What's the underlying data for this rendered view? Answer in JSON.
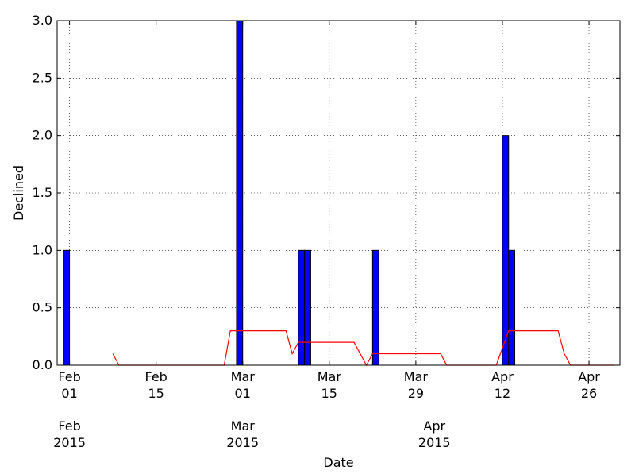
{
  "chart_data": {
    "type": "bar",
    "xlabel": "Date",
    "ylabel": "Declined",
    "grid": true,
    "xlim": [
      "2015-01-30",
      "2015-05-01"
    ],
    "ylim": [
      0,
      3.0
    ],
    "yticks": [
      {
        "value": 0.0,
        "label": "0.0"
      },
      {
        "value": 0.5,
        "label": "0.5"
      },
      {
        "value": 1.0,
        "label": "1.0"
      },
      {
        "value": 1.5,
        "label": "1.5"
      },
      {
        "value": 2.0,
        "label": "2.0"
      },
      {
        "value": 2.5,
        "label": "2.5"
      },
      {
        "value": 3.0,
        "label": "3.0"
      }
    ],
    "xticks": [
      {
        "date": "2015-02-01",
        "label": "Feb",
        "sublabel": "01"
      },
      {
        "date": "2015-02-15",
        "label": "Feb",
        "sublabel": "15"
      },
      {
        "date": "2015-03-01",
        "label": "Mar",
        "sublabel": "01"
      },
      {
        "date": "2015-03-15",
        "label": "Mar",
        "sublabel": "15"
      },
      {
        "date": "2015-03-29",
        "label": "Mar",
        "sublabel": "29"
      },
      {
        "date": "2015-04-12",
        "label": "Apr",
        "sublabel": "12"
      },
      {
        "date": "2015-04-26",
        "label": "Apr",
        "sublabel": "26"
      }
    ],
    "month_ticks": [
      {
        "date": "2015-02-01",
        "label": "Feb",
        "year": "2015"
      },
      {
        "date": "2015-03-01",
        "label": "Mar",
        "year": "2015"
      },
      {
        "date": "2015-04-01",
        "label": "Apr",
        "year": "2015"
      }
    ],
    "series": [
      {
        "type": "bar",
        "color": "#0000ff",
        "points": [
          {
            "date": "2015-01-31",
            "value": 1
          },
          {
            "date": "2015-02-28",
            "value": 3
          },
          {
            "date": "2015-03-10",
            "value": 1
          },
          {
            "date": "2015-03-11",
            "value": 1
          },
          {
            "date": "2015-03-22",
            "value": 1
          },
          {
            "date": "2015-04-12",
            "value": 2
          },
          {
            "date": "2015-04-13",
            "value": 1
          }
        ]
      },
      {
        "type": "line",
        "color": "#ff0000",
        "points": [
          {
            "date": "2015-02-08",
            "value": 0.1
          },
          {
            "date": "2015-02-09",
            "value": 0.0
          },
          {
            "date": "2015-02-26",
            "value": 0.0
          },
          {
            "date": "2015-02-27",
            "value": 0.3
          },
          {
            "date": "2015-03-08",
            "value": 0.3
          },
          {
            "date": "2015-03-09",
            "value": 0.1
          },
          {
            "date": "2015-03-10",
            "value": 0.2
          },
          {
            "date": "2015-03-19",
            "value": 0.2
          },
          {
            "date": "2015-03-21",
            "value": 0.0
          },
          {
            "date": "2015-03-22",
            "value": 0.1
          },
          {
            "date": "2015-04-02",
            "value": 0.1
          },
          {
            "date": "2015-04-03",
            "value": 0.0
          },
          {
            "date": "2015-04-11",
            "value": 0.0
          },
          {
            "date": "2015-04-13",
            "value": 0.3
          },
          {
            "date": "2015-04-21",
            "value": 0.3
          },
          {
            "date": "2015-04-22",
            "value": 0.1
          },
          {
            "date": "2015-04-23",
            "value": 0.0
          },
          {
            "date": "2015-04-30",
            "value": 0.0
          }
        ]
      }
    ]
  }
}
